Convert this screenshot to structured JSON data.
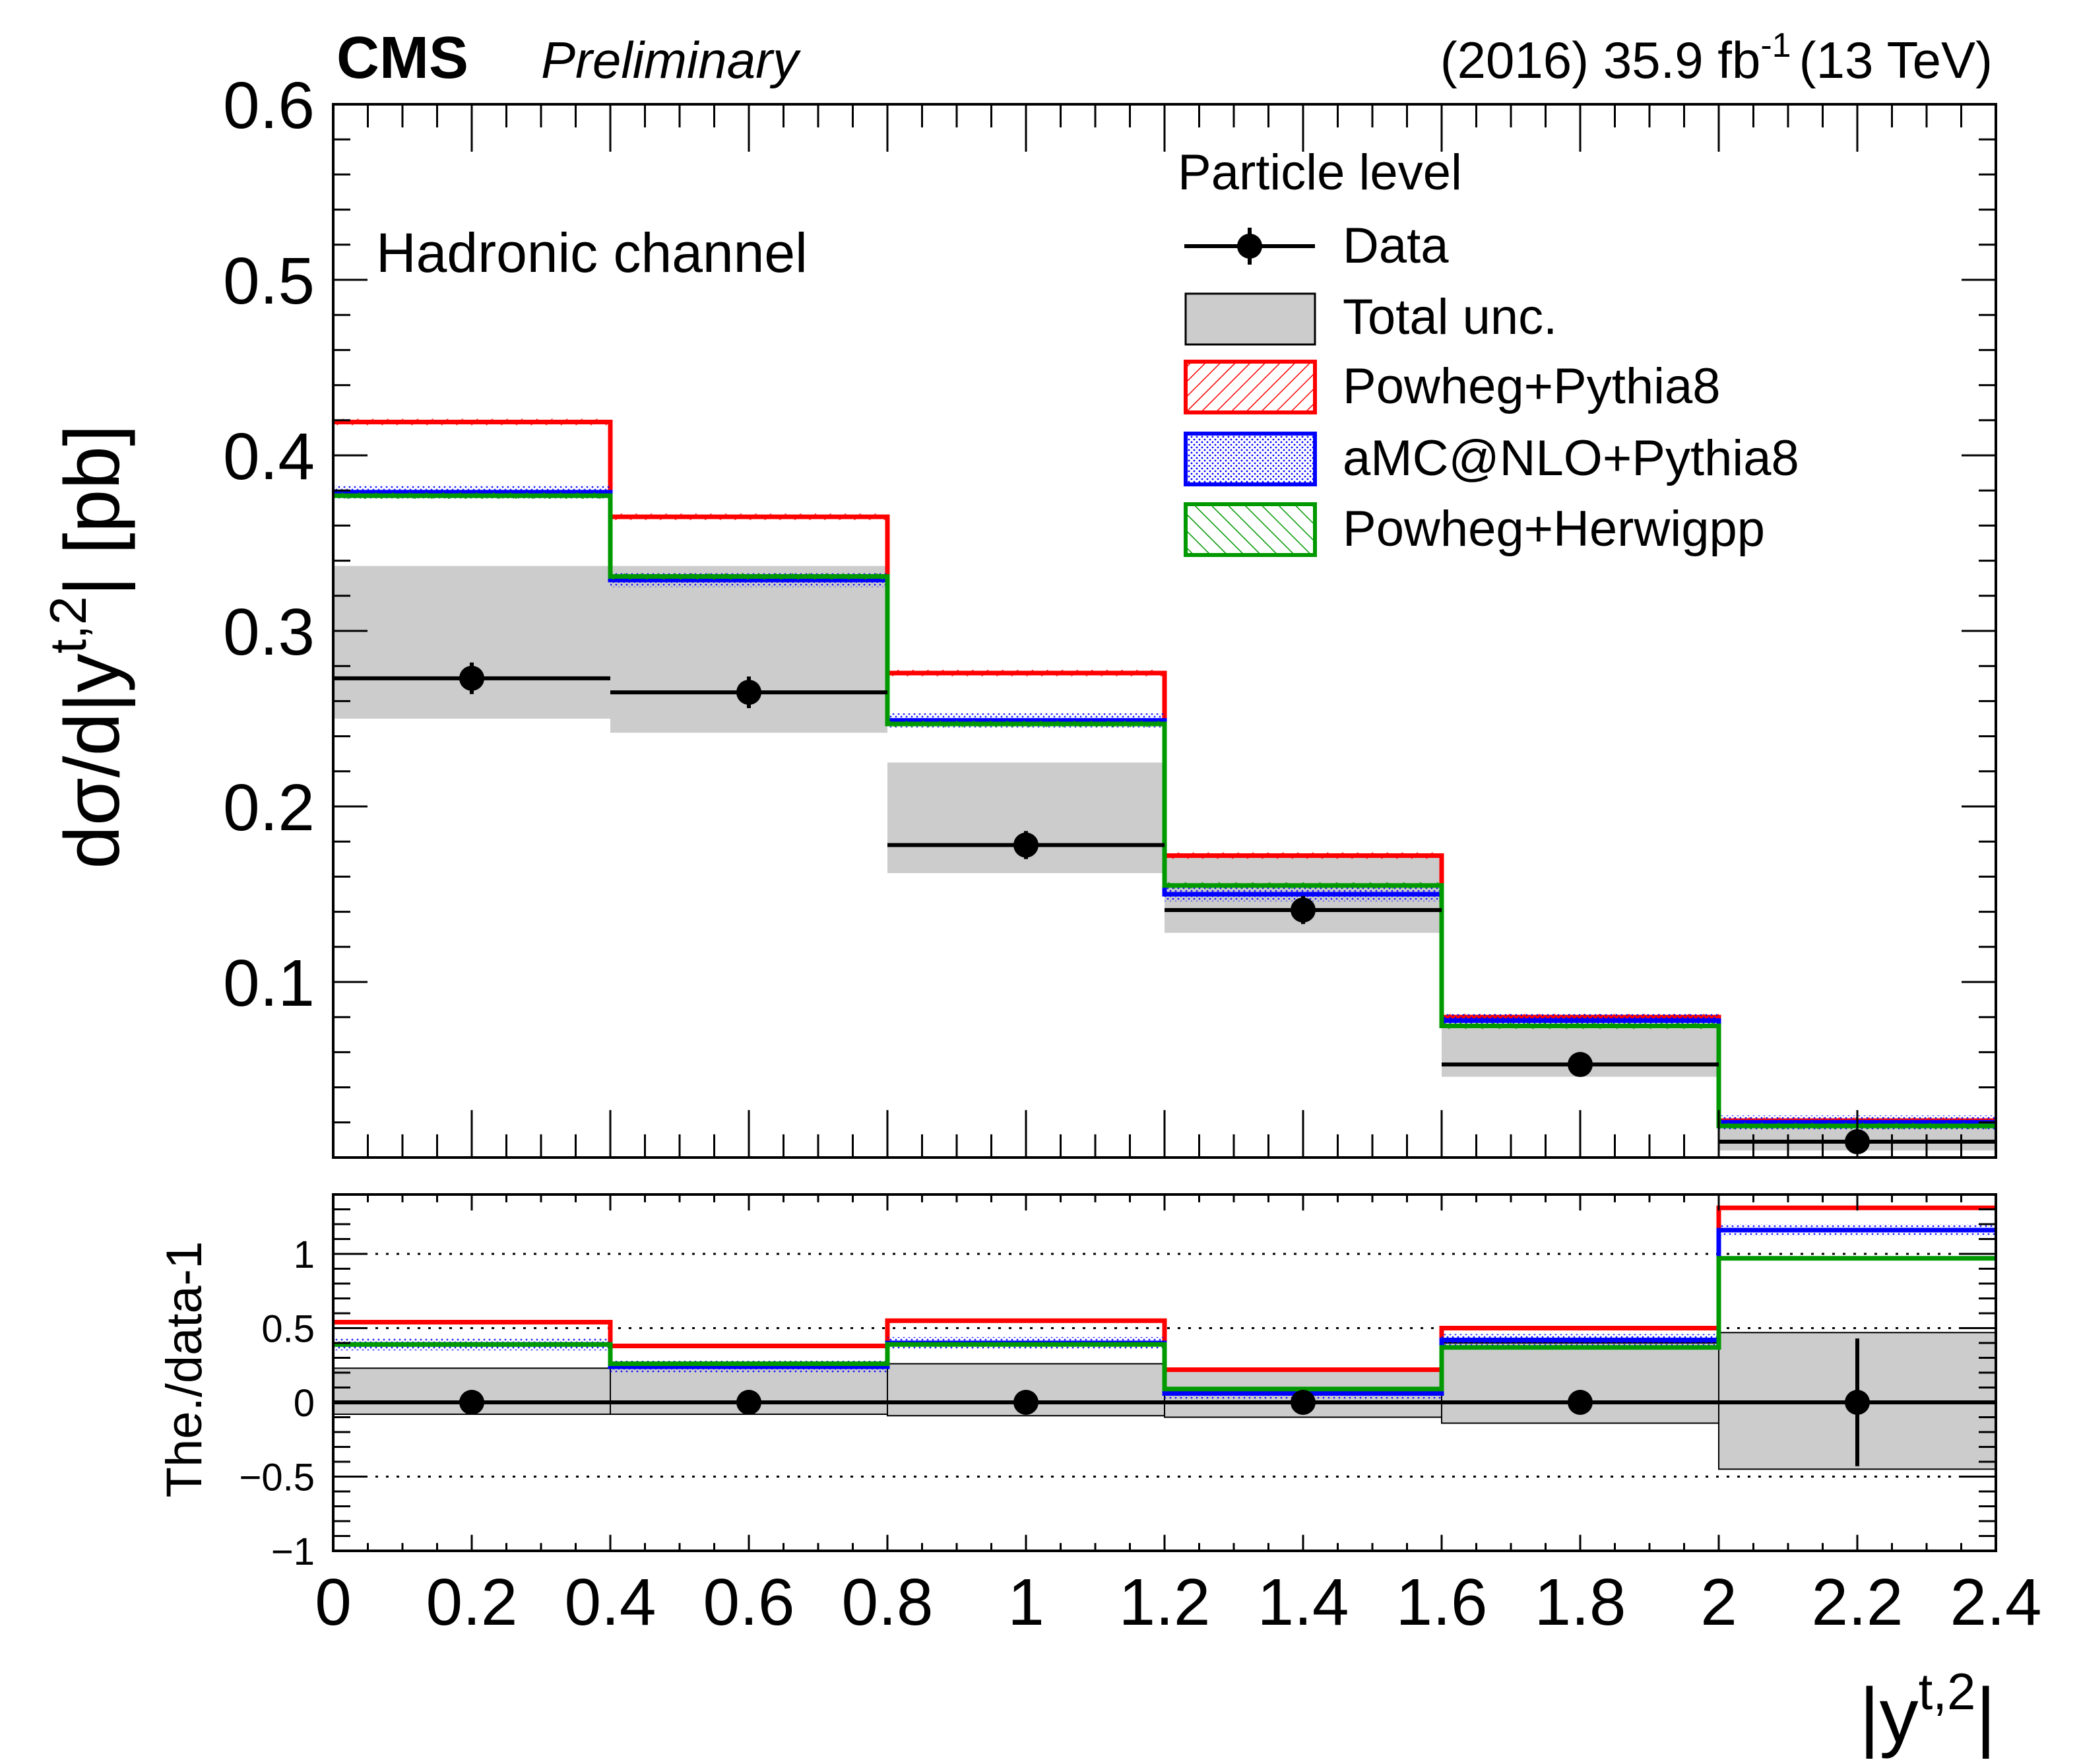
{
  "header": {
    "experiment": "CMS",
    "status": "Preliminary",
    "lumi_year": "(2016) 35.9 fb",
    "lumi_exp": "-1",
    "energy": "(13 TeV)"
  },
  "annotation": "Hadronic channel",
  "legend": {
    "title": "Particle level",
    "entries": [
      {
        "key": "data",
        "label": "Data"
      },
      {
        "key": "total_unc",
        "label": "Total unc."
      },
      {
        "key": "powheg_pythia8",
        "label": "Powheg+Pythia8"
      },
      {
        "key": "amcatnlo_pythia8",
        "label": "aMC@NLO+Pythia8"
      },
      {
        "key": "powheg_herwigpp",
        "label": "Powheg+Herwigpp"
      }
    ]
  },
  "colors": {
    "powheg_pythia8": "#ff0000",
    "amcatnlo_pythia8": "#0000ff",
    "powheg_herwigpp": "#009900",
    "total_unc": "#cccccc",
    "data": "#000000"
  },
  "chart_data": [
    {
      "type": "step",
      "panel": "main",
      "ylabel_base": "dσ/d|y",
      "ylabel_sup": "t,2",
      "ylabel_unit": "| [pb]",
      "ylim": [
        0,
        0.6
      ],
      "yticks": [
        "0.1",
        "0.2",
        "0.3",
        "0.4",
        "0.5",
        "0.6"
      ],
      "bin_edges": [
        0,
        0.4,
        0.8,
        1.2,
        1.6,
        2.0,
        2.4
      ],
      "data": {
        "x": [
          0.2,
          0.6,
          1.0,
          1.4,
          1.8,
          2.2
        ],
        "y": [
          0.273,
          0.265,
          0.178,
          0.141,
          0.053,
          0.009
        ],
        "yerr": [
          0.009,
          0.009,
          0.008,
          0.008,
          0.004,
          0.002
        ]
      },
      "total_unc": {
        "low": [
          0.25,
          0.242,
          0.162,
          0.128,
          0.046,
          0.004
        ],
        "high": [
          0.337,
          0.337,
          0.225,
          0.172,
          0.075,
          0.021
        ]
      },
      "series": [
        {
          "name": "Powheg+Pythia8",
          "key": "powheg_pythia8",
          "values": [
            0.419,
            0.365,
            0.276,
            0.172,
            0.08,
            0.021
          ]
        },
        {
          "name": "aMC@NLO+Pythia8",
          "key": "amcatnlo_pythia8",
          "values": [
            0.379,
            0.329,
            0.249,
            0.15,
            0.078,
            0.02
          ],
          "band": 0.004
        },
        {
          "name": "Powheg+Herwigpp",
          "key": "powheg_herwigpp",
          "values": [
            0.377,
            0.331,
            0.247,
            0.155,
            0.075,
            0.018
          ]
        }
      ]
    },
    {
      "type": "step",
      "panel": "ratio",
      "ylabel": "The./data-1",
      "ylim": [
        -1,
        1.4
      ],
      "yticks": [
        "−1",
        "−0.5",
        "0",
        "0.5",
        "1"
      ],
      "xlabel_base": "|y",
      "xlabel_sup": "t,2",
      "xlabel_end": "|",
      "xticks": [
        "0",
        "0.2",
        "0.4",
        "0.6",
        "0.8",
        "1",
        "1.2",
        "1.4",
        "1.6",
        "1.8",
        "2",
        "2.2",
        "2.4"
      ],
      "xlim": [
        0,
        2.4
      ],
      "bin_edges": [
        0,
        0.4,
        0.8,
        1.2,
        1.6,
        2.0,
        2.4
      ],
      "gridlines_y": [
        -0.5,
        0.5,
        1.0
      ],
      "data": {
        "x": [
          0.2,
          0.6,
          1.0,
          1.4,
          1.8,
          2.2
        ],
        "y": [
          0,
          0,
          0,
          0,
          0,
          0
        ],
        "yerr": [
          0.03,
          0.03,
          0.04,
          0.05,
          0.08,
          0.43
        ]
      },
      "total_unc": {
        "low": [
          -0.08,
          -0.08,
          -0.09,
          -0.1,
          -0.14,
          -0.45
        ],
        "high": [
          0.23,
          0.23,
          0.26,
          0.22,
          0.4,
          0.47
        ]
      },
      "series": [
        {
          "name": "Powheg+Pythia8",
          "key": "powheg_pythia8",
          "values": [
            0.54,
            0.38,
            0.55,
            0.22,
            0.5,
            1.31
          ]
        },
        {
          "name": "aMC@NLO+Pythia8",
          "key": "amcatnlo_pythia8",
          "values": [
            0.39,
            0.24,
            0.4,
            0.06,
            0.42,
            1.16
          ],
          "band": 0.04
        },
        {
          "name": "Powheg+Herwigpp",
          "key": "powheg_herwigpp",
          "values": [
            0.39,
            0.26,
            0.39,
            0.09,
            0.37,
            0.97
          ]
        }
      ]
    }
  ]
}
